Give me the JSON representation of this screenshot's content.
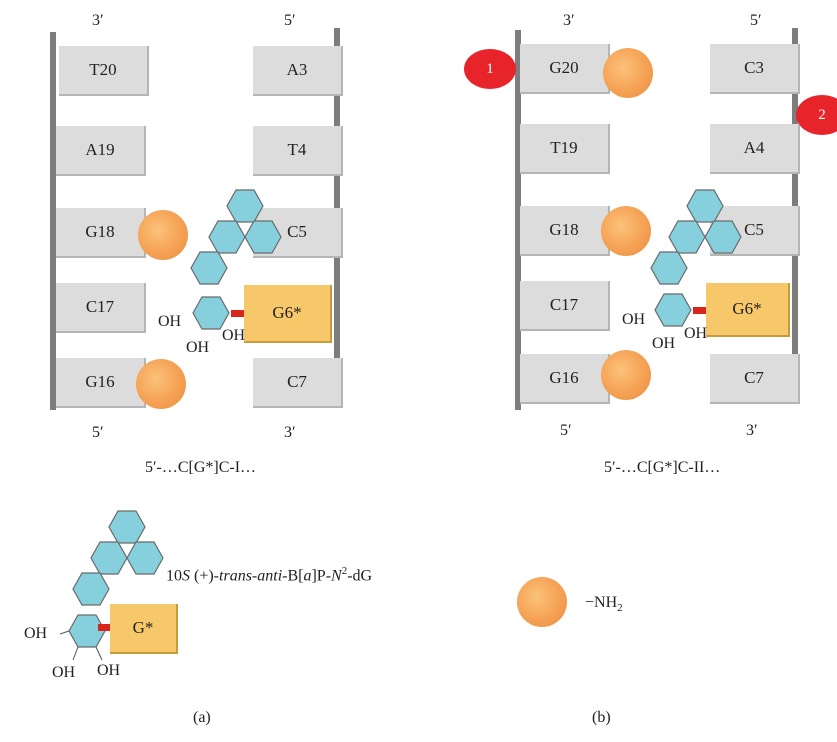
{
  "panel_a": {
    "prime_top_left": "3′",
    "prime_top_right": "5′",
    "prime_bottom_left": "5′",
    "prime_bottom_right": "3′",
    "left_strand": [
      "T20",
      "A19",
      "G18",
      "C17",
      "G16"
    ],
    "right_strand": [
      "A3",
      "T4",
      "C5",
      "G6*",
      "C7"
    ],
    "oh_labels": [
      "OH",
      "OH",
      "OH"
    ],
    "caption": "5′-…C[G*]C-I…",
    "panel_label": "(a)"
  },
  "panel_b": {
    "prime_top_left": "3′",
    "prime_top_right": "5′",
    "prime_bottom_left": "5′",
    "prime_bottom_right": "3′",
    "left_strand": [
      "G20",
      "T19",
      "G18",
      "C17",
      "G16"
    ],
    "right_strand": [
      "C3",
      "A4",
      "C5",
      "G6*",
      "C7"
    ],
    "oh_labels": [
      "OH",
      "OH",
      "OH"
    ],
    "marker_1": "1",
    "marker_2": "2",
    "caption": "5′-…C[G*]C-II…",
    "panel_label": "(b)"
  },
  "legend": {
    "adduct_base": "G*",
    "oh_labels": [
      "OH",
      "OH",
      "OH"
    ],
    "adduct_name": {
      "p1": "10",
      "p2": "S",
      "p3": " (+)-",
      "p4": "trans-anti",
      "p5": "-B[",
      "p6": "a",
      "p7": "]P-",
      "p8": "N",
      "p9": "2",
      "p10": "-dG"
    },
    "amine_main": "−NH",
    "amine_sub": "2"
  },
  "colors": {
    "base_fill": "#dcdcdc",
    "adduct_fill": "#f7c869",
    "ring_fill": "#86cfdc",
    "amine_circle": "#f5a154",
    "marker_red": "#e8242b",
    "linker_red": "#d9261c",
    "backbone": "#7d7d7d"
  },
  "icons": [
    "amine-site-icon",
    "bpde-ring-icon",
    "site-marker-icon"
  ]
}
